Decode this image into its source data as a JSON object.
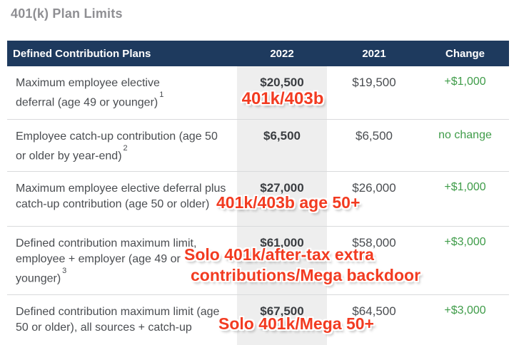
{
  "page_title": "401(k) Plan Limits",
  "colors": {
    "header_bg": "#1e3a5e",
    "header_text": "#ffffff",
    "stripe": "#eeeeee",
    "positive_change": "#3f9c49",
    "annotation_red": "#f23b21",
    "title_gray": "#8f8f93",
    "body_text": "#4a4d51"
  },
  "table": {
    "headers": [
      "Defined Contribution Plans",
      "2022",
      "2021",
      "Change"
    ],
    "rows": [
      {
        "plan_lines": [
          "Maximum employee elective",
          "deferral (age 49 or younger)"
        ],
        "footnote": "1",
        "y2022": "$20,500",
        "y2021": "$19,500",
        "change": "+$1,000"
      },
      {
        "plan_lines": [
          "Employee catch-up contribution (age 50",
          "or older by year-end)"
        ],
        "footnote": "2",
        "y2022": "$6,500",
        "y2021": "$6,500",
        "change": "no change"
      },
      {
        "plan_lines": [
          "Maximum employee elective deferral plus",
          "catch-up contribution (age 50 or older)"
        ],
        "y2022": "$27,000",
        "y2021": "$26,000",
        "change": "+$1,000"
      },
      {
        "plan_lines": [
          "Defined contribution maximum limit,",
          "employee + employer (age 49 or",
          "younger)"
        ],
        "footnote": "3",
        "y2022": "$61,000",
        "y2021": "$58,000",
        "change": "+$3,000"
      },
      {
        "plan_lines": [
          "Defined contribution maximum limit (age",
          "50 or older), all sources + catch-up"
        ],
        "y2022": "$67,500",
        "y2021": "$64,500",
        "change": "+$3,000"
      }
    ]
  },
  "annotations": [
    {
      "lines": [
        "401k/403b"
      ]
    },
    {
      "lines": [
        "401k/403b age 50+"
      ]
    },
    {
      "lines": [
        "Solo 401k/after-tax extra",
        "contributions/Mega backdoor"
      ]
    },
    {
      "lines": [
        "Solo 401k/Mega 50+"
      ]
    }
  ],
  "chart_data": {
    "type": "table",
    "title": "401(k) Plan Limits",
    "columns": [
      "Defined Contribution Plans",
      "2022",
      "2021",
      "Change"
    ],
    "rows": [
      [
        "Maximum employee elective deferral (age 49 or younger) 1",
        "$20,500",
        "$19,500",
        "+$1,000"
      ],
      [
        "Employee catch-up contribution (age 50 or older by year-end) 2",
        "$6,500",
        "$6,500",
        "no change"
      ],
      [
        "Maximum employee elective deferral plus catch-up contribution (age 50 or older)",
        "$27,000",
        "$26,000",
        "+$1,000"
      ],
      [
        "Defined contribution maximum limit, employee + employer (age 49 or younger) 3",
        "$61,000",
        "$58,000",
        "+$3,000"
      ],
      [
        "Defined contribution maximum limit (age 50 or older), all sources + catch-up",
        "$67,500",
        "$64,500",
        "+$3,000"
      ]
    ],
    "annotations": [
      "401k/403b",
      "401k/403b age 50+",
      "Solo 401k/after-tax extra contributions/Mega backdoor",
      "Solo 401k/Mega 50+"
    ]
  }
}
